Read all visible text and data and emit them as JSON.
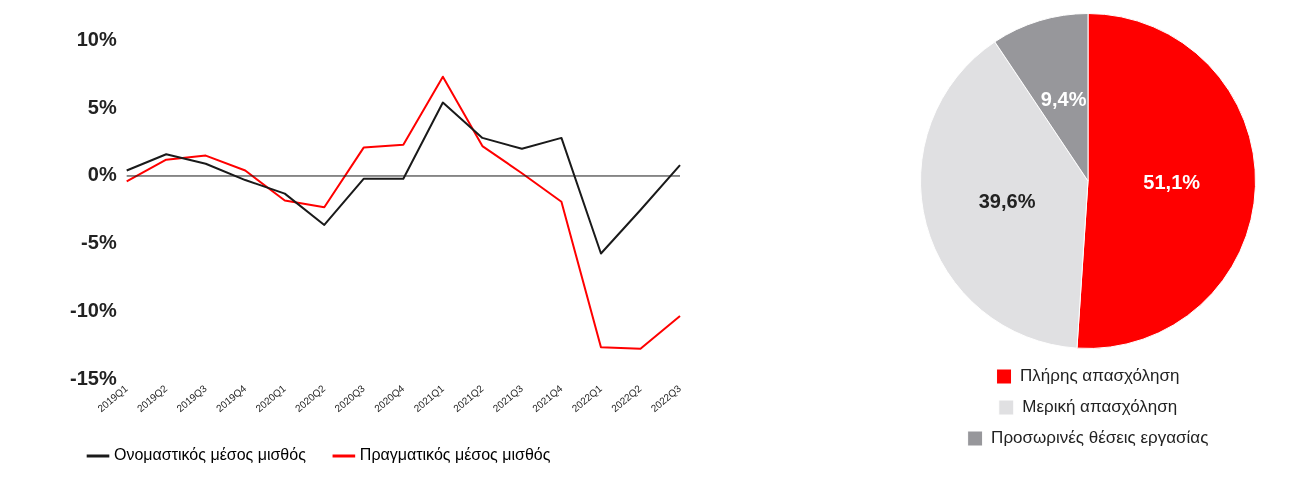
{
  "chart_data": [
    {
      "type": "line",
      "categories": [
        "2019Q1",
        "2019Q2",
        "2019Q3",
        "2019Q4",
        "2020Q1",
        "2020Q2",
        "2020Q3",
        "2020Q4",
        "2021Q1",
        "2021Q2",
        "2021Q3",
        "2021Q4",
        "2022Q1",
        "2022Q2",
        "2022Q3"
      ],
      "series": [
        {
          "name": "Ονομαστικός μέσος μισθός",
          "color": "#1a1a1a",
          "values": [
            0.4,
            1.6,
            0.9,
            -0.3,
            -1.3,
            -3.6,
            -0.2,
            -0.2,
            5.4,
            2.8,
            2.0,
            2.8,
            -5.7,
            -2.5,
            0.8
          ]
        },
        {
          "name": "Πραγματικός μέσος μισθός",
          "color": "#ff0000",
          "values": [
            -0.4,
            1.2,
            1.5,
            0.4,
            -1.8,
            -2.3,
            2.1,
            2.3,
            7.3,
            2.2,
            0.2,
            -1.9,
            -12.6,
            -12.7,
            -10.3
          ]
        }
      ],
      "ylim": [
        -15,
        10
      ],
      "yticks": [
        {
          "value": -15,
          "label": "-15%"
        },
        {
          "value": -10,
          "label": "-10%"
        },
        {
          "value": -5,
          "label": "-5%"
        },
        {
          "value": 0,
          "label": "0%"
        },
        {
          "value": 5,
          "label": "5%"
        },
        {
          "value": 10,
          "label": "10%"
        }
      ],
      "ref_lines": [
        {
          "axis": "y",
          "value": 0,
          "color": "#1a1a1a"
        }
      ],
      "grid": false,
      "legend": "bottom left",
      "marker": "none",
      "line_style": "solid"
    },
    {
      "type": "pie",
      "categories": [
        "Πλήρης απασχόληση",
        "Μερική απασχόληση",
        "Προσωρινές θέσεις εργασίας"
      ],
      "values": [
        51.1,
        39.6,
        9.4
      ],
      "colors": [
        "#ff0000",
        "#e0e0e2",
        "#97979b"
      ],
      "value_labels": [
        "51,1%",
        "39,6%",
        "9,4%"
      ],
      "legend": "bottom"
    }
  ]
}
